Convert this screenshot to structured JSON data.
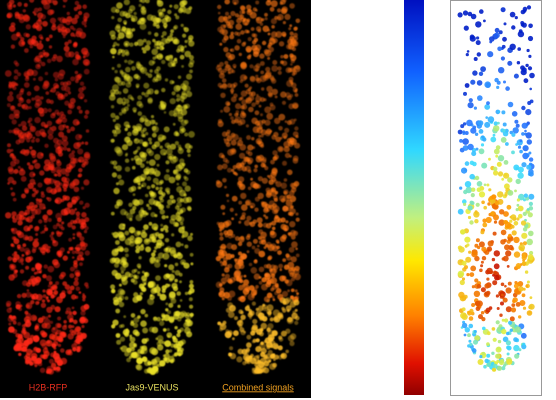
{
  "panels": {
    "labels": [
      "H2B-RFP",
      "Jas9-VENUS",
      "Combined signals"
    ]
  }
}
